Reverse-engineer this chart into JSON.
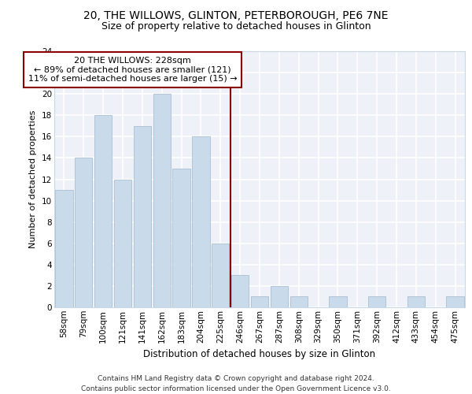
{
  "title1": "20, THE WILLOWS, GLINTON, PETERBOROUGH, PE6 7NE",
  "title2": "Size of property relative to detached houses in Glinton",
  "xlabel": "Distribution of detached houses by size in Glinton",
  "ylabel": "Number of detached properties",
  "categories": [
    "58sqm",
    "79sqm",
    "100sqm",
    "121sqm",
    "141sqm",
    "162sqm",
    "183sqm",
    "204sqm",
    "225sqm",
    "246sqm",
    "267sqm",
    "287sqm",
    "308sqm",
    "329sqm",
    "350sqm",
    "371sqm",
    "392sqm",
    "412sqm",
    "433sqm",
    "454sqm",
    "475sqm"
  ],
  "values": [
    11,
    14,
    18,
    12,
    17,
    20,
    13,
    16,
    6,
    3,
    1,
    2,
    1,
    0,
    1,
    0,
    1,
    0,
    1,
    0,
    1
  ],
  "bar_color": "#c9daea",
  "bar_edge_color": "#a0b8cc",
  "vline_color": "#8b0000",
  "annotation_text": "20 THE WILLOWS: 228sqm\n← 89% of detached houses are smaller (121)\n11% of semi-detached houses are larger (15) →",
  "annotation_box_color": "#ffffff",
  "annotation_box_edge": "#8b0000",
  "ylim": [
    0,
    24
  ],
  "yticks": [
    0,
    2,
    4,
    6,
    8,
    10,
    12,
    14,
    16,
    18,
    20,
    22,
    24
  ],
  "footer": "Contains HM Land Registry data © Crown copyright and database right 2024.\nContains public sector information licensed under the Open Government Licence v3.0.",
  "bg_color": "#eef2f8",
  "grid_color": "#ffffff",
  "title1_fontsize": 10,
  "title2_fontsize": 9,
  "xlabel_fontsize": 8.5,
  "ylabel_fontsize": 8,
  "tick_fontsize": 7.5,
  "annotation_fontsize": 8,
  "footer_fontsize": 6.5
}
